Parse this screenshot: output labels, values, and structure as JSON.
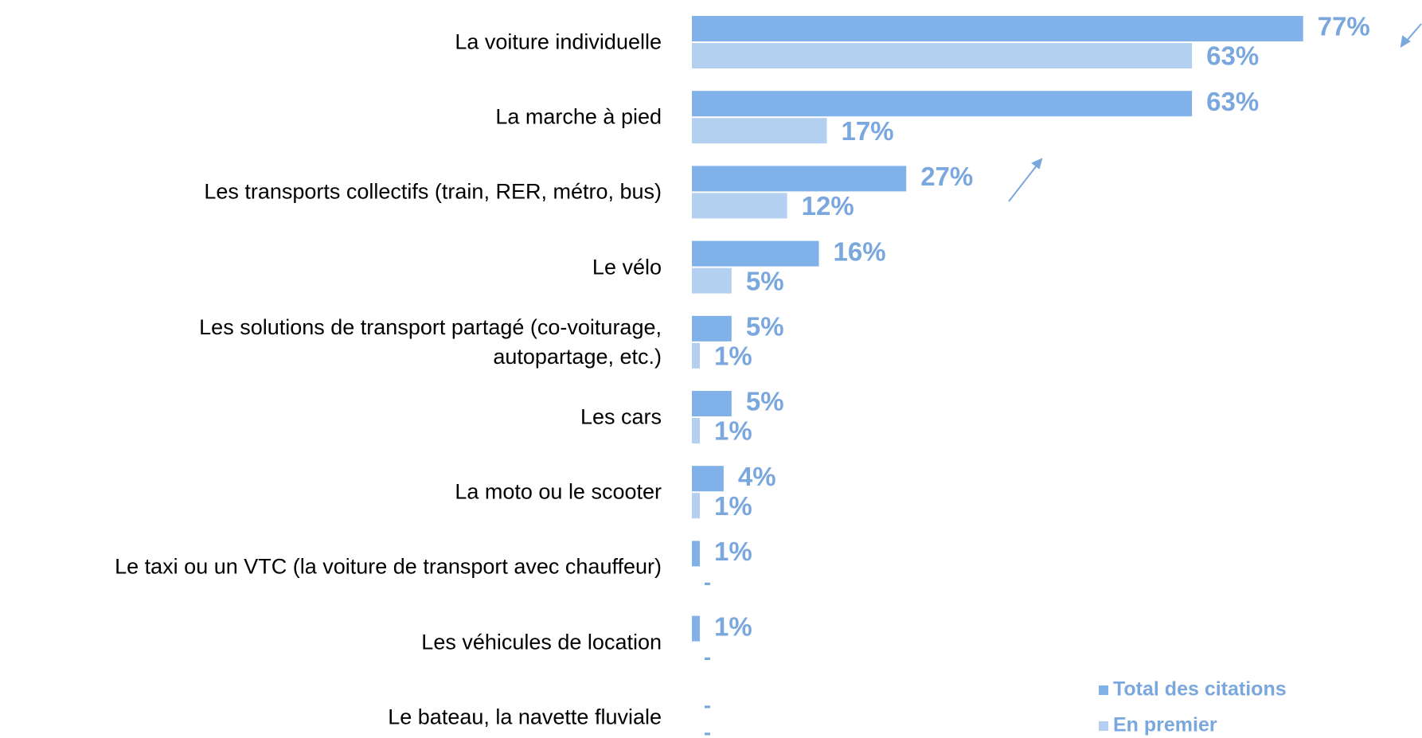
{
  "chart_data": {
    "type": "bar",
    "orientation": "horizontal",
    "categories": [
      "La voiture individuelle",
      "La marche à pied",
      "Les transports collectifs (train, RER, métro, bus)",
      "Le vélo",
      "Les solutions de transport partagé (co-voiturage,\nautopartage, etc.)",
      "Les cars",
      "La moto ou le scooter",
      "Le taxi ou un VTC (la voiture de transport avec chauffeur)",
      "Les véhicules de location",
      "Le bateau, la navette fluviale"
    ],
    "series": [
      {
        "name": "Total des citations",
        "color": "#80b1e8",
        "values": [
          77,
          63,
          27,
          16,
          5,
          5,
          4,
          1,
          1,
          null
        ],
        "value_labels": [
          "77%",
          "63%",
          "27%",
          "16%",
          "5%",
          "5%",
          "4%",
          "1%",
          "1%",
          "-"
        ]
      },
      {
        "name": "En premier",
        "color": "#b4d0f1",
        "values": [
          63,
          17,
          12,
          5,
          1,
          1,
          1,
          null,
          null,
          null
        ],
        "value_labels": [
          "63%",
          "17%",
          "12%",
          "5%",
          "1%",
          "1%",
          "1%",
          "-",
          "-",
          "-"
        ]
      }
    ],
    "legend": "lower right"
  }
}
